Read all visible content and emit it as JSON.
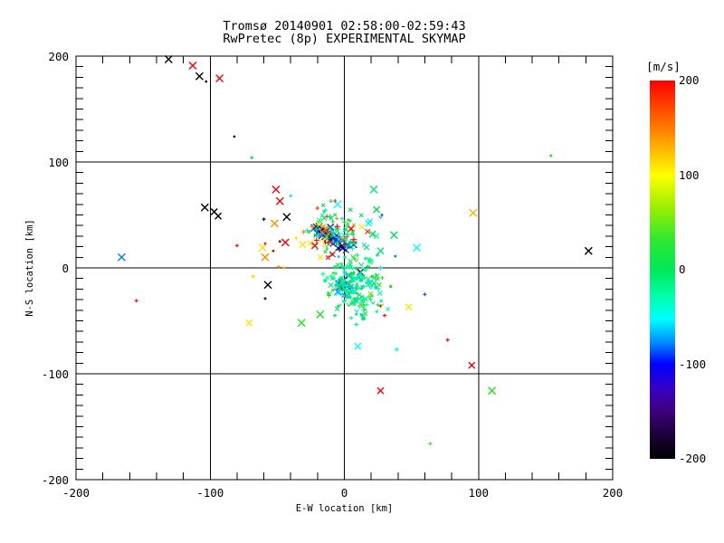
{
  "title": {
    "line1": "Tromsø 20140901 02:58:00-02:59:43",
    "line2": "RwPretec (8p) EXPERIMENTAL SKYMAP",
    "color": "#000000"
  },
  "axes": {
    "xlabel": "E-W location [km]",
    "ylabel": "N-S location [km]",
    "x_ticks": [
      -200,
      -100,
      0,
      100,
      200
    ],
    "y_ticks": [
      -200,
      -100,
      0,
      100,
      200
    ],
    "x_minor_step": 20,
    "y_minor_step": 10,
    "grid": true,
    "line_color": "#000000"
  },
  "colorbar": {
    "label": "[m/s]",
    "ticks": [
      200,
      100,
      0,
      -100,
      -200
    ],
    "vmin": -200,
    "vmax": 200,
    "gradient": [
      [
        "#ff0000",
        0
      ],
      [
        "#ff8000",
        13
      ],
      [
        "#ffff00",
        25
      ],
      [
        "#a0f000",
        33
      ],
      [
        "#30e830",
        42
      ],
      [
        "#00e858",
        50
      ],
      [
        "#00ffa8",
        57
      ],
      [
        "#00ffff",
        63
      ],
      [
        "#0090ff",
        69
      ],
      [
        "#0000ff",
        75
      ],
      [
        "#3800c0",
        82
      ],
      [
        "#400080",
        87
      ],
      [
        "#200040",
        93
      ],
      [
        "#000000",
        100
      ]
    ]
  },
  "chart_data": {
    "type": "scatter",
    "title": "Tromsø 20140901 02:58:00-02:59:43 / RwPretec (8p) EXPERIMENTAL SKYMAP",
    "xlabel": "E-W location [km]",
    "ylabel": "N-S location [km]",
    "xlim": [
      -200,
      200
    ],
    "ylim": [
      -200,
      200
    ],
    "color_scale": {
      "label": "[m/s]",
      "min": -200,
      "max": 200
    },
    "legend_position": "right-colorbar",
    "point_format": [
      "x_km",
      "y_km",
      "color",
      "marker",
      "size"
    ],
    "points": [
      [
        -131,
        197,
        "#000000",
        "x",
        4
      ],
      [
        -113,
        191,
        "#ff0000",
        "x",
        4
      ],
      [
        -108,
        181,
        "#000000",
        "x",
        4
      ],
      [
        -103,
        176,
        "#000000",
        ".",
        1.5
      ],
      [
        -93,
        179,
        "#ff0000",
        "x",
        4
      ],
      [
        -82,
        124,
        "#000000",
        ".",
        1.5
      ],
      [
        -69,
        104,
        "#00d850",
        "+",
        2
      ],
      [
        154,
        106,
        "#30d820",
        ".",
        1.7
      ],
      [
        -166,
        10,
        "#0080ff",
        "x",
        4
      ],
      [
        -104,
        57,
        "#000000",
        "x",
        4
      ],
      [
        -97,
        53,
        "#000000",
        "x",
        3.5
      ],
      [
        -94,
        49,
        "#000000",
        "x",
        3.5
      ],
      [
        -60,
        46,
        "#000000",
        "+",
        2
      ],
      [
        -52,
        42,
        "#ff8c00",
        "x",
        4
      ],
      [
        -43,
        48,
        "#000000",
        "x",
        4
      ],
      [
        -51,
        74,
        "#ff0000",
        "x",
        4
      ],
      [
        -48,
        63,
        "#ff0000",
        "x",
        4
      ],
      [
        -40,
        68,
        "#00e8c8",
        ".",
        1.6
      ],
      [
        -80,
        21,
        "#ff0000",
        "+",
        2
      ],
      [
        -61,
        19,
        "#ffe000",
        "x",
        4
      ],
      [
        -59,
        23,
        "#ff2000",
        ".",
        1.6
      ],
      [
        -48,
        25,
        "#801010",
        ".",
        1.6
      ],
      [
        -44,
        24,
        "#ff0000",
        "x",
        4
      ],
      [
        -53,
        16,
        "#c81010",
        ".",
        1.6
      ],
      [
        -59,
        10,
        "#ff8c00",
        "x",
        4
      ],
      [
        -49,
        1,
        "#ff9800",
        "+",
        2
      ],
      [
        -45,
        0,
        "#ffa800",
        ".",
        1.6
      ],
      [
        -68,
        -8,
        "#ffe000",
        ".",
        2
      ],
      [
        -57,
        -16,
        "#000000",
        "x",
        4
      ],
      [
        -59,
        -29,
        "#000000",
        "+",
        1.6
      ],
      [
        -155,
        -31,
        "#ff0000",
        "+",
        2
      ],
      [
        -71,
        -52,
        "#ffe800",
        "x",
        3.5
      ],
      [
        -32,
        -52,
        "#20e020",
        "x",
        4
      ],
      [
        -18,
        -44,
        "#20e020",
        "x",
        4
      ],
      [
        -7,
        -45,
        "#00e060",
        "+",
        2
      ],
      [
        96,
        52,
        "#ffb000",
        "x",
        4
      ],
      [
        182,
        16,
        "#000000",
        "x",
        4
      ],
      [
        22,
        74,
        "#00e878",
        "x",
        4
      ],
      [
        24,
        55,
        "#00d850",
        "x",
        3.5
      ],
      [
        28,
        50,
        "#0060ff",
        ".",
        1.6
      ],
      [
        18,
        42,
        "#00ffff",
        "x",
        3.5
      ],
      [
        19,
        44,
        "#00e8ff",
        "x",
        3
      ],
      [
        21,
        32,
        "#00e060",
        "x",
        3.5
      ],
      [
        24,
        30,
        "#00ff90",
        "x",
        3
      ],
      [
        37,
        31,
        "#00e060",
        "x",
        4
      ],
      [
        54,
        19,
        "#00ffff",
        "x",
        4
      ],
      [
        27,
        16,
        "#00e870",
        "x",
        3.5
      ],
      [
        38,
        11,
        "#0080ff",
        ".",
        1.6
      ],
      [
        60,
        -25,
        "#0050ff",
        "+",
        2
      ],
      [
        48,
        -37,
        "#ffe800",
        "x",
        3.5
      ],
      [
        27,
        -36,
        "#ff0000",
        "+",
        2
      ],
      [
        30,
        -45,
        "#ff0000",
        "+",
        2
      ],
      [
        12,
        -4,
        "#000000",
        "x",
        3.5
      ],
      [
        -2,
        -19,
        "#000000",
        "+",
        2
      ],
      [
        10,
        -74,
        "#00ffff",
        "x",
        3.5
      ],
      [
        39,
        -77,
        "#00ffff",
        ".",
        2
      ],
      [
        77,
        -68,
        "#ff0000",
        "+",
        2
      ],
      [
        95,
        -92,
        "#e80000",
        "x",
        3.5
      ],
      [
        27,
        -116,
        "#ff0000",
        "x",
        3.5
      ],
      [
        110,
        -116,
        "#20e020",
        "x",
        4
      ],
      [
        64,
        -166,
        "#30e020",
        "+",
        2
      ],
      [
        5,
        37,
        "#ff0000",
        "x",
        3.5
      ],
      [
        -22,
        21,
        "#ff0000",
        "x",
        3.5
      ],
      [
        -31,
        22,
        "#ffe000",
        "x",
        3.5
      ],
      [
        -5,
        60,
        "#00ffff",
        "x",
        4
      ],
      [
        -10,
        63,
        "#00e060",
        "+",
        2
      ],
      [
        27,
        48,
        "#00c8a0",
        "v",
        2
      ]
    ],
    "seed": 77,
    "clusters": [
      {
        "name": "echo-band-navy",
        "type": "band",
        "count": 42,
        "x0": -20,
        "y0": 37,
        "x1": 3,
        "y1": 19,
        "jx": 3,
        "jy": 2.5,
        "palette": [
          [
            "#000088",
            30
          ],
          [
            "#0028c8",
            20
          ],
          [
            "#0060ff",
            15
          ],
          [
            "#101018",
            12
          ],
          [
            "#0098ff",
            13
          ],
          [
            "#00e8ff",
            10
          ]
        ],
        "markers": "x",
        "smin": 2.5,
        "smax": 4.5
      },
      {
        "name": "echo-knot-blue",
        "type": "gauss",
        "count": 24,
        "cx": 1,
        "cy": -17,
        "sx": 3.5,
        "sy": 4.5,
        "corr": 0,
        "palette": [
          [
            "#0070ff",
            40
          ],
          [
            "#00a8ff",
            25
          ],
          [
            "#00ffff",
            20
          ],
          [
            "#0028e0",
            15
          ]
        ],
        "markers": "x",
        "smin": 2,
        "smax": 4
      },
      {
        "name": "echo-cloud-green",
        "type": "gauss",
        "count": 190,
        "cx": 7,
        "cy": -15,
        "sx": 10,
        "sy": 14,
        "corr": -0.25,
        "palette": [
          [
            "#00e878",
            35
          ],
          [
            "#00ff90",
            25
          ],
          [
            "#28d828",
            15
          ],
          [
            "#00e0b0",
            12
          ],
          [
            "#00e8ff",
            8
          ],
          [
            "#70e000",
            5
          ]
        ],
        "markers": "+xv.",
        "smin": 1.5,
        "smax": 2.8
      },
      {
        "name": "echo-fringe-green",
        "type": "gauss",
        "count": 72,
        "cx": -6,
        "cy": 36,
        "sx": 13,
        "sy": 11,
        "corr": 0,
        "palette": [
          [
            "#00e060",
            40
          ],
          [
            "#00ff90",
            18
          ],
          [
            "#30d030",
            15
          ],
          [
            "#00e8ff",
            12
          ],
          [
            "#ffe800",
            5
          ],
          [
            "#ff8800",
            5
          ],
          [
            "#ff2800",
            5
          ]
        ],
        "markers": "+x",
        "smin": 1.5,
        "smax": 3
      },
      {
        "name": "echo-sprinkle-warm",
        "type": "gauss",
        "count": 16,
        "cx": -16,
        "cy": 24,
        "sx": 13,
        "sy": 9,
        "corr": 0,
        "palette": [
          [
            "#ff0000",
            50
          ],
          [
            "#ff8000",
            25
          ],
          [
            "#ffe000",
            25
          ]
        ],
        "markers": "x+",
        "smin": 2,
        "smax": 3.5
      }
    ]
  }
}
